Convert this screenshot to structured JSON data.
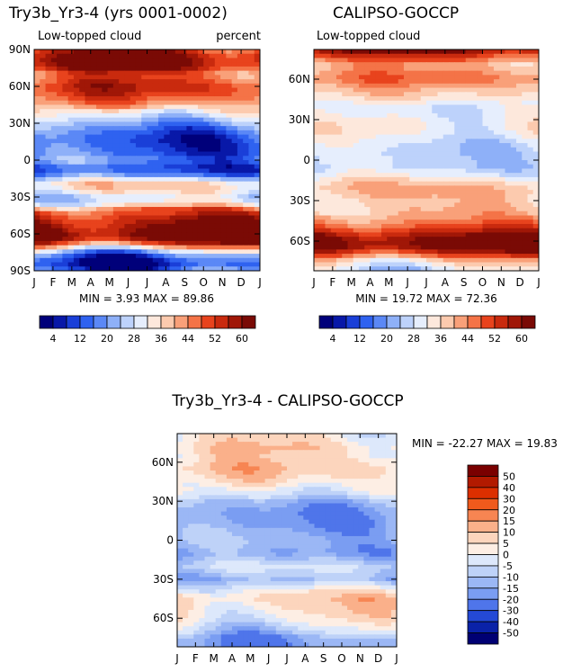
{
  "chart_data": [
    {
      "type": "heatmap",
      "title": "Try3b_Yr3-4 (yrs 0001-0002)",
      "subtitle": "Low-topped cloud",
      "units": "percent",
      "x_ticks": [
        "J",
        "F",
        "M",
        "A",
        "M",
        "J",
        "J",
        "A",
        "S",
        "O",
        "N",
        "D",
        "J"
      ],
      "y_ticks": [
        "90N",
        "60N",
        "30N",
        "0",
        "30S",
        "60S",
        "90S"
      ],
      "stats": "MIN =   3.93 MAX =  89.86",
      "colorbar_labels": [
        "4",
        "12",
        "20",
        "28",
        "36",
        "44",
        "52",
        "60"
      ],
      "lat_profile": [
        {
          "lat": -90,
          "v": 14
        },
        {
          "lat": -85,
          "v": 7
        },
        {
          "lat": -80,
          "v": 10
        },
        {
          "lat": -75,
          "v": 22
        },
        {
          "lat": -70,
          "v": 42
        },
        {
          "lat": -65,
          "v": 62
        },
        {
          "lat": -60,
          "v": 66
        },
        {
          "lat": -55,
          "v": 62
        },
        {
          "lat": -50,
          "v": 58
        },
        {
          "lat": -45,
          "v": 54
        },
        {
          "lat": -40,
          "v": 46
        },
        {
          "lat": -35,
          "v": 30
        },
        {
          "lat": -30,
          "v": 28
        },
        {
          "lat": -25,
          "v": 34
        },
        {
          "lat": -20,
          "v": 38
        },
        {
          "lat": -15,
          "v": 26
        },
        {
          "lat": -10,
          "v": 12
        },
        {
          "lat": -5,
          "v": 12
        },
        {
          "lat": 0,
          "v": 18
        },
        {
          "lat": 5,
          "v": 14
        },
        {
          "lat": 10,
          "v": 12
        },
        {
          "lat": 15,
          "v": 11
        },
        {
          "lat": 20,
          "v": 12
        },
        {
          "lat": 25,
          "v": 16
        },
        {
          "lat": 30,
          "v": 22
        },
        {
          "lat": 35,
          "v": 28
        },
        {
          "lat": 40,
          "v": 34
        },
        {
          "lat": 45,
          "v": 42
        },
        {
          "lat": 50,
          "v": 48
        },
        {
          "lat": 55,
          "v": 52
        },
        {
          "lat": 60,
          "v": 54
        },
        {
          "lat": 65,
          "v": 50
        },
        {
          "lat": 70,
          "v": 48
        },
        {
          "lat": 75,
          "v": 58
        },
        {
          "lat": 80,
          "v": 62
        },
        {
          "lat": 85,
          "v": 60
        },
        {
          "lat": 90,
          "v": 55
        }
      ]
    },
    {
      "type": "heatmap",
      "title": "CALIPSO-GOCCP",
      "subtitle": "Low-topped cloud",
      "x_ticks": [
        "J",
        "F",
        "M",
        "A",
        "M",
        "J",
        "J",
        "A",
        "S",
        "O",
        "N",
        "D",
        "J"
      ],
      "y_ticks": [
        "60N",
        "30N",
        "0",
        "30S",
        "60S"
      ],
      "stats": "MIN =  19.72 MAX =  72.36",
      "colorbar_labels": [
        "4",
        "12",
        "20",
        "28",
        "36",
        "44",
        "52",
        "60"
      ],
      "lat_profile": [
        {
          "lat": -82,
          "v": 28
        },
        {
          "lat": -75,
          "v": 36
        },
        {
          "lat": -70,
          "v": 50
        },
        {
          "lat": -65,
          "v": 62
        },
        {
          "lat": -60,
          "v": 64
        },
        {
          "lat": -55,
          "v": 58
        },
        {
          "lat": -50,
          "v": 50
        },
        {
          "lat": -45,
          "v": 44
        },
        {
          "lat": -40,
          "v": 40
        },
        {
          "lat": -35,
          "v": 38
        },
        {
          "lat": -30,
          "v": 38
        },
        {
          "lat": -25,
          "v": 40
        },
        {
          "lat": -20,
          "v": 40
        },
        {
          "lat": -15,
          "v": 36
        },
        {
          "lat": -10,
          "v": 30
        },
        {
          "lat": -5,
          "v": 26
        },
        {
          "lat": 0,
          "v": 27
        },
        {
          "lat": 5,
          "v": 26
        },
        {
          "lat": 10,
          "v": 27
        },
        {
          "lat": 15,
          "v": 29
        },
        {
          "lat": 20,
          "v": 32
        },
        {
          "lat": 25,
          "v": 33
        },
        {
          "lat": 30,
          "v": 32
        },
        {
          "lat": 35,
          "v": 30
        },
        {
          "lat": 40,
          "v": 30
        },
        {
          "lat": 45,
          "v": 34
        },
        {
          "lat": 50,
          "v": 38
        },
        {
          "lat": 55,
          "v": 42
        },
        {
          "lat": 60,
          "v": 46
        },
        {
          "lat": 65,
          "v": 44
        },
        {
          "lat": 70,
          "v": 40
        },
        {
          "lat": 75,
          "v": 48
        },
        {
          "lat": 80,
          "v": 58
        },
        {
          "lat": 82,
          "v": 62
        }
      ]
    },
    {
      "type": "heatmap",
      "title": "Try3b_Yr3-4 - CALIPSO-GOCCP",
      "x_ticks": [
        "J",
        "F",
        "M",
        "A",
        "M",
        "J",
        "J",
        "A",
        "S",
        "O",
        "N",
        "D",
        "J"
      ],
      "y_ticks": [
        "60N",
        "30N",
        "0",
        "30S",
        "60S"
      ],
      "stats": "MIN = -22.27 MAX =  19.83",
      "colorbar_labels": [
        "50",
        "40",
        "30",
        "20",
        "15",
        "10",
        "5",
        "0",
        "-5",
        "-10",
        "-15",
        "-20",
        "-30",
        "-40",
        "-50"
      ],
      "lat_profile": [
        {
          "lat": -82,
          "v": -18
        },
        {
          "lat": -75,
          "v": -16
        },
        {
          "lat": -70,
          "v": -8
        },
        {
          "lat": -65,
          "v": -3
        },
        {
          "lat": -60,
          "v": 2
        },
        {
          "lat": -55,
          "v": 4
        },
        {
          "lat": -50,
          "v": 6
        },
        {
          "lat": -45,
          "v": 8
        },
        {
          "lat": -40,
          "v": 4
        },
        {
          "lat": -35,
          "v": -4
        },
        {
          "lat": -30,
          "v": -12
        },
        {
          "lat": -25,
          "v": -8
        },
        {
          "lat": -20,
          "v": -4
        },
        {
          "lat": -15,
          "v": -10
        },
        {
          "lat": -10,
          "v": -16
        },
        {
          "lat": -5,
          "v": -14
        },
        {
          "lat": 0,
          "v": -12
        },
        {
          "lat": 5,
          "v": -14
        },
        {
          "lat": 10,
          "v": -16
        },
        {
          "lat": 15,
          "v": -18
        },
        {
          "lat": 20,
          "v": -18
        },
        {
          "lat": 25,
          "v": -16
        },
        {
          "lat": 30,
          "v": -12
        },
        {
          "lat": 35,
          "v": -4
        },
        {
          "lat": 40,
          "v": 0
        },
        {
          "lat": 45,
          "v": 4
        },
        {
          "lat": 50,
          "v": 8
        },
        {
          "lat": 55,
          "v": 10
        },
        {
          "lat": 60,
          "v": 8
        },
        {
          "lat": 65,
          "v": 6
        },
        {
          "lat": 70,
          "v": 8
        },
        {
          "lat": 75,
          "v": 6
        },
        {
          "lat": 80,
          "v": 4
        },
        {
          "lat": 82,
          "v": 3
        }
      ]
    }
  ],
  "colors": {
    "seq": [
      "#00007a",
      "#0818a8",
      "#1a3fd8",
      "#2f62f0",
      "#5b88f6",
      "#8eb0f8",
      "#bdd2fb",
      "#e6eefd",
      "#fde8dc",
      "#fccaae",
      "#f9a079",
      "#f47347",
      "#e8431d",
      "#c92a0e",
      "#a01707",
      "#7a0a05"
    ],
    "div": [
      "#7a0000",
      "#b21a00",
      "#dc2f00",
      "#f05a1c",
      "#f78552",
      "#fab08a",
      "#fcd5bd",
      "#fdeee4",
      "#dde8fb",
      "#bed2f8",
      "#9bb7f5",
      "#7a9df2",
      "#4f75ea",
      "#2449d6",
      "#0a22a8",
      "#000073"
    ]
  }
}
